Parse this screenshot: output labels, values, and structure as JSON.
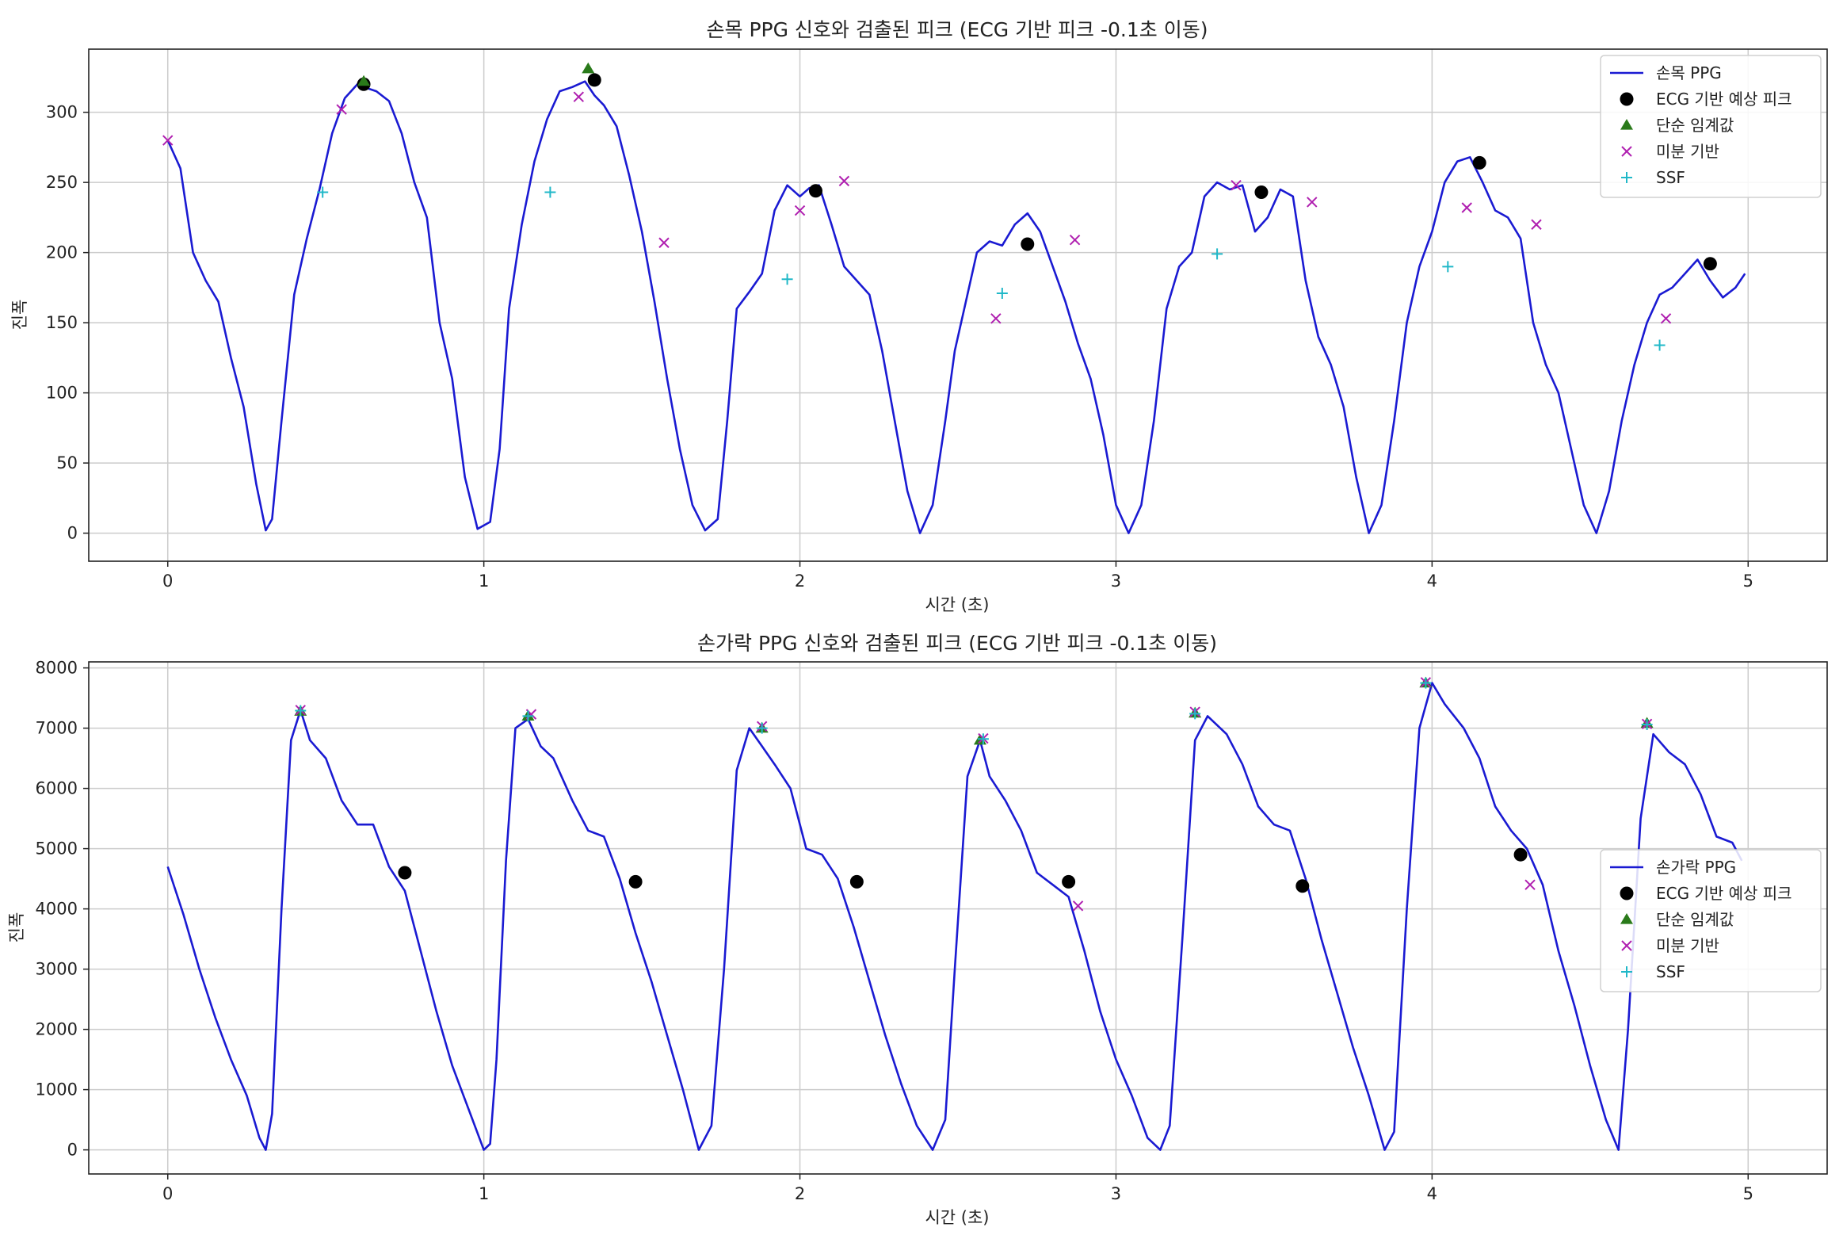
{
  "colors": {
    "ppg_line": "#1a1ad2",
    "ecg_marker": "#000000",
    "threshold_marker": "#2a7a1a",
    "derivative_marker": "#b020b0",
    "ssf_marker": "#20b8c8",
    "grid": "#cccccc",
    "axes": "#222222"
  },
  "chart_data": [
    {
      "type": "line",
      "title": "손목 PPG 신호와 검출된 피크 (ECG 기반 피크 -0.1초 이동)",
      "xlabel": "시간 (초)",
      "ylabel": "진폭",
      "xlim": [
        -0.25,
        5.25
      ],
      "ylim": [
        -20,
        345
      ],
      "xticks": [
        0,
        1,
        2,
        3,
        4,
        5
      ],
      "yticks": [
        0,
        50,
        100,
        150,
        200,
        250,
        300
      ],
      "grid": true,
      "legend_position": "top-right",
      "legend": [
        "손목 PPG",
        "ECG 기반 예상 피크",
        "단순 임계값",
        "미분 기반",
        "SSF"
      ],
      "series": [
        {
          "name": "손목 PPG",
          "kind": "line",
          "x": [
            0,
            0.04,
            0.08,
            0.12,
            0.16,
            0.2,
            0.24,
            0.28,
            0.31,
            0.33,
            0.36,
            0.4,
            0.44,
            0.48,
            0.52,
            0.56,
            0.6,
            0.62,
            0.66,
            0.7,
            0.74,
            0.78,
            0.82,
            0.86,
            0.9,
            0.94,
            0.98,
            1.02,
            1.05,
            1.08,
            1.12,
            1.16,
            1.2,
            1.24,
            1.28,
            1.32,
            1.35,
            1.38,
            1.42,
            1.46,
            1.5,
            1.54,
            1.58,
            1.62,
            1.66,
            1.7,
            1.74,
            1.77,
            1.8,
            1.84,
            1.88,
            1.92,
            1.96,
            2.0,
            2.03,
            2.06,
            2.1,
            2.14,
            2.18,
            2.22,
            2.26,
            2.3,
            2.34,
            2.38,
            2.42,
            2.46,
            2.49,
            2.52,
            2.56,
            2.6,
            2.64,
            2.68,
            2.72,
            2.76,
            2.8,
            2.84,
            2.88,
            2.92,
            2.96,
            3.0,
            3.04,
            3.08,
            3.12,
            3.16,
            3.2,
            3.24,
            3.28,
            3.32,
            3.36,
            3.4,
            3.44,
            3.48,
            3.52,
            3.56,
            3.6,
            3.64,
            3.68,
            3.72,
            3.76,
            3.8,
            3.84,
            3.88,
            3.92,
            3.96,
            4.0,
            4.04,
            4.08,
            4.12,
            4.16,
            4.2,
            4.24,
            4.28,
            4.32,
            4.36,
            4.4,
            4.44,
            4.48,
            4.52,
            4.56,
            4.6,
            4.64,
            4.68,
            4.72,
            4.76,
            4.8,
            4.84,
            4.88,
            4.92,
            4.96,
            4.99
          ],
          "y": [
            280,
            260,
            200,
            180,
            165,
            125,
            90,
            35,
            2,
            10,
            80,
            170,
            210,
            245,
            285,
            310,
            320,
            318,
            315,
            308,
            285,
            250,
            225,
            150,
            110,
            40,
            3,
            8,
            60,
            160,
            220,
            265,
            295,
            315,
            318,
            322,
            312,
            305,
            290,
            255,
            215,
            165,
            110,
            60,
            20,
            2,
            10,
            80,
            160,
            172,
            185,
            230,
            248,
            240,
            246,
            248,
            220,
            190,
            180,
            170,
            130,
            80,
            30,
            0,
            20,
            80,
            130,
            160,
            200,
            208,
            205,
            220,
            228,
            215,
            190,
            165,
            135,
            110,
            70,
            20,
            0,
            20,
            80,
            160,
            190,
            200,
            240,
            250,
            245,
            248,
            215,
            225,
            245,
            240,
            180,
            140,
            120,
            90,
            40,
            0,
            20,
            80,
            150,
            190,
            215,
            250,
            265,
            268,
            250,
            230,
            225,
            210,
            150,
            120,
            100,
            60,
            20,
            0,
            30,
            80,
            120,
            150,
            170,
            175,
            185,
            195,
            180,
            168,
            175,
            185
          ]
        },
        {
          "name": "ECG 기반 예상 피크",
          "kind": "scatter",
          "marker": "circle",
          "x": [
            0.62,
            1.35,
            2.05,
            2.72,
            3.46,
            4.15,
            4.88
          ],
          "y": [
            320,
            323,
            244,
            206,
            243,
            264,
            192
          ]
        },
        {
          "name": "단순 임계값",
          "kind": "scatter",
          "marker": "triangle",
          "x": [
            0.62,
            1.33
          ],
          "y": [
            322,
            331
          ]
        },
        {
          "name": "미분 기반",
          "kind": "scatter",
          "marker": "x",
          "x": [
            0.0,
            0.55,
            1.3,
            1.57,
            2.0,
            2.14,
            2.62,
            2.87,
            3.38,
            3.62,
            4.11,
            4.33,
            4.74
          ],
          "y": [
            280,
            302,
            311,
            207,
            230,
            251,
            153,
            209,
            248,
            236,
            232,
            220,
            153
          ]
        },
        {
          "name": "SSF",
          "kind": "scatter",
          "marker": "plus",
          "x": [
            0.49,
            1.21,
            1.96,
            2.64,
            3.32,
            4.05,
            4.72
          ],
          "y": [
            243,
            243,
            181,
            171,
            199,
            190,
            134
          ]
        }
      ]
    },
    {
      "type": "line",
      "title": "손가락 PPG 신호와 검출된 피크 (ECG 기반 피크 -0.1초 이동)",
      "xlabel": "시간 (초)",
      "ylabel": "진폭",
      "xlim": [
        -0.25,
        5.25
      ],
      "ylim": [
        -400,
        8100
      ],
      "xticks": [
        0,
        1,
        2,
        3,
        4,
        5
      ],
      "yticks": [
        0,
        1000,
        2000,
        3000,
        4000,
        5000,
        6000,
        7000,
        8000
      ],
      "grid": true,
      "legend_position": "center-right",
      "legend": [
        "손가락 PPG",
        "ECG 기반 예상 피크",
        "단순 임계값",
        "미분 기반",
        "SSF"
      ],
      "series": [
        {
          "name": "손가락 PPG",
          "kind": "line",
          "x": [
            0,
            0.05,
            0.1,
            0.15,
            0.2,
            0.25,
            0.29,
            0.31,
            0.33,
            0.36,
            0.39,
            0.42,
            0.45,
            0.5,
            0.55,
            0.6,
            0.65,
            0.7,
            0.75,
            0.8,
            0.85,
            0.9,
            0.95,
            1.0,
            1.02,
            1.04,
            1.07,
            1.1,
            1.14,
            1.18,
            1.22,
            1.28,
            1.33,
            1.38,
            1.43,
            1.48,
            1.53,
            1.58,
            1.63,
            1.68,
            1.72,
            1.76,
            1.8,
            1.84,
            1.88,
            1.92,
            1.97,
            2.02,
            2.07,
            2.12,
            2.17,
            2.22,
            2.27,
            2.32,
            2.37,
            2.42,
            2.46,
            2.49,
            2.53,
            2.57,
            2.6,
            2.65,
            2.7,
            2.75,
            2.8,
            2.85,
            2.9,
            2.95,
            3.0,
            3.05,
            3.1,
            3.14,
            3.17,
            3.21,
            3.25,
            3.29,
            3.35,
            3.4,
            3.45,
            3.5,
            3.55,
            3.6,
            3.65,
            3.7,
            3.75,
            3.8,
            3.85,
            3.88,
            3.92,
            3.96,
            4.0,
            4.04,
            4.1,
            4.15,
            4.2,
            4.25,
            4.3,
            4.35,
            4.4,
            4.45,
            4.5,
            4.55,
            4.59,
            4.62,
            4.66,
            4.7,
            4.75,
            4.8,
            4.85,
            4.9,
            4.95,
            4.98
          ],
          "y": [
            4700,
            3900,
            3000,
            2200,
            1500,
            900,
            200,
            0,
            600,
            4000,
            6800,
            7300,
            6800,
            6500,
            5800,
            5400,
            5400,
            4700,
            4300,
            3300,
            2300,
            1400,
            700,
            0,
            100,
            1500,
            4800,
            7000,
            7150,
            6700,
            6500,
            5800,
            5300,
            5200,
            4500,
            3600,
            2800,
            1900,
            1000,
            0,
            400,
            3000,
            6300,
            7000,
            6700,
            6400,
            6000,
            5000,
            4900,
            4500,
            3700,
            2800,
            1900,
            1100,
            400,
            0,
            500,
            3000,
            6200,
            6800,
            6200,
            5800,
            5300,
            4600,
            4400,
            4200,
            3300,
            2300,
            1500,
            900,
            200,
            0,
            400,
            3500,
            6800,
            7200,
            6900,
            6400,
            5700,
            5400,
            5300,
            4500,
            3500,
            2600,
            1700,
            900,
            0,
            300,
            4000,
            7000,
            7750,
            7400,
            7000,
            6500,
            5700,
            5300,
            5000,
            4400,
            3300,
            2400,
            1400,
            500,
            0,
            2000,
            5500,
            6900,
            6600,
            6400,
            5900,
            5200,
            5100,
            4800
          ]
        },
        {
          "name": "ECG 기반 예상 피크",
          "kind": "scatter",
          "marker": "circle",
          "x": [
            0.75,
            1.48,
            2.18,
            2.85,
            3.59,
            4.28
          ],
          "y": [
            4600,
            4450,
            4450,
            4450,
            4380,
            4900
          ]
        },
        {
          "name": "단순 임계값",
          "kind": "scatter",
          "marker": "triangle",
          "x": [
            0.42,
            1.14,
            1.88,
            2.57,
            3.25,
            3.98,
            4.68
          ],
          "y": [
            7280,
            7200,
            7000,
            6800,
            7250,
            7750,
            7080
          ]
        },
        {
          "name": "미분 기반",
          "kind": "scatter",
          "marker": "x",
          "x": [
            0.42,
            1.15,
            1.88,
            2.58,
            2.88,
            3.25,
            3.98,
            4.31,
            4.68
          ],
          "y": [
            7300,
            7230,
            7030,
            6830,
            4050,
            7270,
            7760,
            4400,
            7070
          ]
        },
        {
          "name": "SSF",
          "kind": "scatter",
          "marker": "plus",
          "x": [
            0.42,
            1.14,
            1.88,
            2.58,
            3.25,
            3.98,
            4.68
          ],
          "y": [
            7290,
            7200,
            7000,
            6820,
            7240,
            7750,
            7060
          ]
        }
      ]
    }
  ]
}
